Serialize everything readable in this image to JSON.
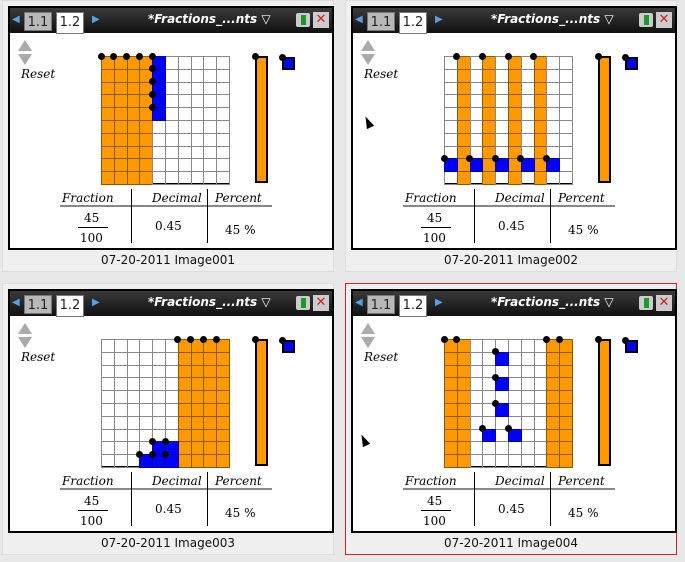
{
  "window": {
    "tabs": [
      "1.1",
      "1.2"
    ],
    "active_tab": "1.2",
    "title": "*Fractions_...nts",
    "close_label": "✕"
  },
  "colors": {
    "orange": "#ff9900",
    "blue": "#0000ff",
    "selected_border": "#e02020"
  },
  "panels": [
    {
      "caption": "07-20-2011 Image001",
      "orange_columns": [
        0,
        1,
        2,
        3
      ],
      "blue_cells": [
        [
          0,
          4
        ],
        [
          1,
          4
        ],
        [
          2,
          4
        ],
        [
          3,
          4
        ],
        [
          4,
          4
        ]
      ],
      "selected": false
    },
    {
      "caption": "07-20-2011 Image002",
      "orange_columns": [
        1,
        3,
        5,
        7
      ],
      "blue_cells": [
        [
          8,
          0
        ],
        [
          8,
          2
        ],
        [
          8,
          4
        ],
        [
          8,
          6
        ],
        [
          8,
          8
        ]
      ],
      "selected": false
    },
    {
      "caption": "07-20-2011 Image003",
      "orange_columns": [
        6,
        7,
        8,
        9
      ],
      "blue_cells": [
        [
          8,
          4
        ],
        [
          8,
          5
        ],
        [
          9,
          3
        ],
        [
          9,
          4
        ],
        [
          9,
          5
        ]
      ],
      "selected": false
    },
    {
      "caption": "07-20-2011 Image004",
      "orange_columns": [
        0,
        1,
        8,
        9
      ],
      "blue_cells": [
        [
          1,
          4
        ],
        [
          3,
          4
        ],
        [
          5,
          4
        ],
        [
          7,
          3
        ],
        [
          7,
          5
        ]
      ],
      "selected": true
    }
  ],
  "content": {
    "reset_label": "Reset",
    "table": {
      "headers": [
        "Fraction",
        "Decimal",
        "Percent"
      ],
      "numerator": "45",
      "denominator": "100",
      "decimal": "0.45",
      "percent": "45 %"
    }
  }
}
